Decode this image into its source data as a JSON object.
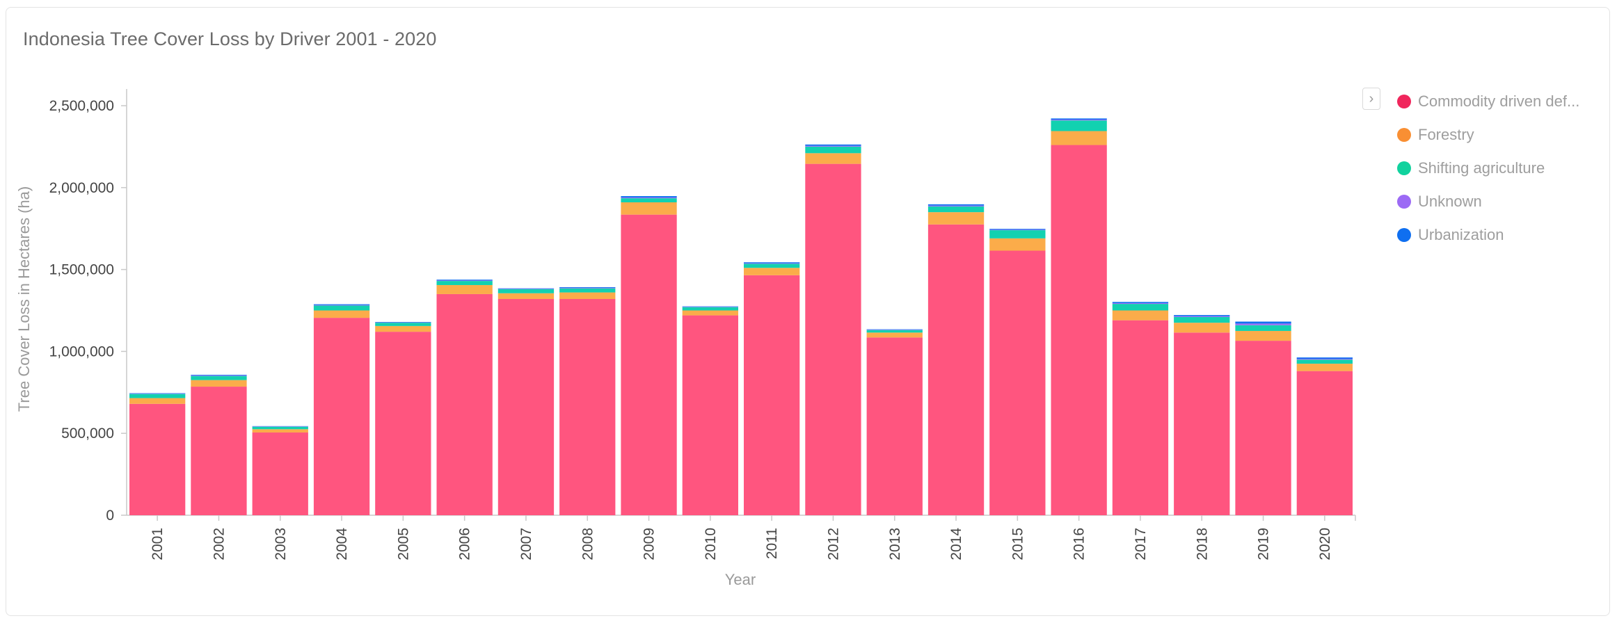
{
  "chart_data": {
    "type": "bar",
    "stacked": true,
    "title": "Indonesia Tree Cover Loss by Driver 2001 - 2020",
    "xlabel": "Year",
    "ylabel": "Tree Cover Loss in Hectares (ha)",
    "ylim": [
      0,
      2600000
    ],
    "yticks": [
      0,
      500000,
      1000000,
      1500000,
      2000000,
      2500000
    ],
    "ytick_labels": [
      "0",
      "500,000",
      "1,000,000",
      "1,500,000",
      "2,000,000",
      "2,500,000"
    ],
    "grid": false,
    "legend_position": "right",
    "categories": [
      "2001",
      "2002",
      "2003",
      "2004",
      "2005",
      "2006",
      "2007",
      "2008",
      "2009",
      "2010",
      "2011",
      "2012",
      "2013",
      "2014",
      "2015",
      "2016",
      "2017",
      "2018",
      "2019",
      "2020"
    ],
    "series": [
      {
        "name": "Commodity driven def...",
        "color": "#ff557f",
        "values": [
          680000,
          785000,
          505000,
          1205000,
          1120000,
          1350000,
          1320000,
          1320000,
          1835000,
          1220000,
          1465000,
          2145000,
          1085000,
          1775000,
          1615000,
          2260000,
          1190000,
          1115000,
          1065000,
          880000
        ]
      },
      {
        "name": "Forestry",
        "color": "#fbac4a",
        "values": [
          35000,
          40000,
          20000,
          45000,
          35000,
          55000,
          35000,
          40000,
          75000,
          30000,
          45000,
          65000,
          30000,
          75000,
          75000,
          85000,
          60000,
          60000,
          60000,
          45000
        ]
      },
      {
        "name": "Shifting agriculture",
        "color": "#12d1b0",
        "values": [
          25000,
          25000,
          15000,
          30000,
          20000,
          25000,
          25000,
          25000,
          25000,
          20000,
          25000,
          40000,
          15000,
          35000,
          50000,
          65000,
          40000,
          35000,
          35000,
          25000
        ]
      },
      {
        "name": "Unknown",
        "color": "#9c6af5",
        "values": [
          2000,
          3000,
          2000,
          3000,
          2000,
          3000,
          2000,
          3000,
          5000,
          2000,
          3000,
          5000,
          2000,
          5000,
          3000,
          5000,
          5000,
          5000,
          10000,
          5000
        ]
      },
      {
        "name": "Urbanization",
        "color": "#0f6ff0",
        "values": [
          3000,
          4000,
          2000,
          5000,
          3000,
          5000,
          3000,
          4000,
          8000,
          3000,
          6000,
          8000,
          3000,
          8000,
          5000,
          7000,
          7000,
          7000,
          12000,
          8000
        ]
      }
    ]
  },
  "legend": {
    "toggle_icon": "chevron-right-icon",
    "toggle_glyph": "›",
    "dot_colors": [
      "#f0265c",
      "#f98f33",
      "#11d29e",
      "#9c6af5",
      "#0f6ff0"
    ]
  }
}
